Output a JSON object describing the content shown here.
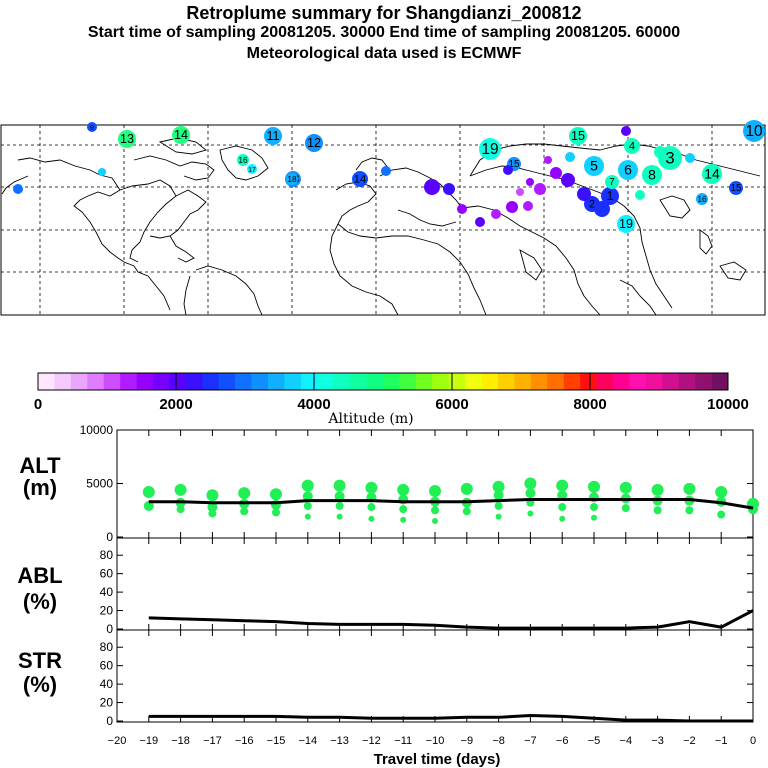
{
  "header": {
    "title": "Retroplume summary for Shangdianzi_200812",
    "sampling": "Start time of sampling 20081205. 30000     End time of sampling 20081205. 60000",
    "met": "Meteorological data used is ECMWF"
  },
  "colorbar": {
    "label": "Altitude (m)",
    "ticks": [
      "0",
      "2000",
      "4000",
      "6000",
      "8000",
      "10000"
    ],
    "colors": [
      "#ffe6ff",
      "#f5c8ff",
      "#eaa6ff",
      "#e07cff",
      "#d04cff",
      "#b01cff",
      "#9600ff",
      "#7800ff",
      "#5a00ff",
      "#3a10ff",
      "#1a30ff",
      "#1050ff",
      "#1070ff",
      "#1090ff",
      "#10b0ff",
      "#10d0ff",
      "#10f0ff",
      "#10ffe0",
      "#10ffc0",
      "#10ffa0",
      "#10ff80",
      "#20ff60",
      "#40ff40",
      "#70ff20",
      "#a0ff10",
      "#c8ff10",
      "#f0ff10",
      "#ffee00",
      "#ffd000",
      "#ffb000",
      "#ff9000",
      "#ff7000",
      "#ff4000",
      "#ff1010",
      "#ff0060",
      "#ff0090",
      "#ff10b0",
      "#f010a0",
      "#d01090",
      "#b01080",
      "#901070",
      "#701060"
    ]
  },
  "map": {
    "markers": [
      {
        "label": "9",
        "color": "#1050ff"
      },
      {
        "label": "13",
        "color": "#20ff80"
      },
      {
        "label": "14",
        "color": "#20ff80"
      },
      {
        "label": "11",
        "color": "#10b0ff"
      },
      {
        "label": "12",
        "color": "#1090ff"
      },
      {
        "label": "16",
        "color": "#10ffc0"
      },
      {
        "label": "17",
        "color": "#10f0ff"
      },
      {
        "label": "18",
        "color": "#1090ff"
      },
      {
        "label": "19",
        "color": "#10ffe0"
      },
      {
        "label": "15",
        "color": "#10ffc0"
      },
      {
        "label": "10",
        "color": "#10b0ff"
      },
      {
        "label": "14",
        "color": "#10ffc0"
      },
      {
        "label": "1",
        "color": "#1a30ff"
      },
      {
        "label": "2",
        "color": "#1a30ff"
      },
      {
        "label": "3",
        "color": "#10ffc0"
      },
      {
        "label": "4",
        "color": "#10ffc0"
      },
      {
        "label": "5",
        "color": "#10d0ff"
      },
      {
        "label": "6",
        "color": "#10d0ff"
      },
      {
        "label": "7",
        "color": "#10ffc0"
      },
      {
        "label": "8",
        "color": "#10ffc0"
      },
      {
        "label": "15",
        "color": "#1090ff"
      },
      {
        "label": "19",
        "color": "#10f0ff"
      },
      {
        "label": "16",
        "color": "#10b0ff"
      },
      {
        "label": "15",
        "color": "#1050ff"
      },
      {
        "label": "14",
        "color": "#1050ff"
      },
      {
        "label": "18",
        "color": "#10b0ff"
      }
    ]
  },
  "chart_data": [
    {
      "type": "scatter",
      "name": "ALT",
      "ylabel": "ALT\n(m)",
      "ylabel_lines": [
        "ALT",
        "(m)"
      ],
      "ylim": [
        0,
        10000
      ],
      "yticks": [
        "10000",
        "5000",
        "0"
      ],
      "xlim": [
        -20,
        0
      ],
      "mean_line": [
        [
          -19,
          3300
        ],
        [
          -18,
          3300
        ],
        [
          -17,
          3200
        ],
        [
          -16,
          3200
        ],
        [
          -15,
          3200
        ],
        [
          -14,
          3400
        ],
        [
          -13,
          3400
        ],
        [
          -12,
          3400
        ],
        [
          -11,
          3300
        ],
        [
          -10,
          3300
        ],
        [
          -9,
          3300
        ],
        [
          -8,
          3400
        ],
        [
          -7,
          3500
        ],
        [
          -6,
          3500
        ],
        [
          -5,
          3500
        ],
        [
          -4,
          3500
        ],
        [
          -3,
          3500
        ],
        [
          -2,
          3500
        ],
        [
          -1,
          3200
        ],
        [
          0,
          2700
        ]
      ],
      "points_per_day": [
        {
          "day": -19,
          "values": [
            4200,
            2900
          ]
        },
        {
          "day": -18,
          "values": [
            4400,
            3200,
            2600
          ]
        },
        {
          "day": -17,
          "values": [
            3900,
            2800,
            2200
          ]
        },
        {
          "day": -16,
          "values": [
            4100,
            3100,
            2400
          ]
        },
        {
          "day": -15,
          "values": [
            4000,
            3000,
            2300
          ]
        },
        {
          "day": -14,
          "values": [
            4800,
            3800,
            2900,
            1900
          ]
        },
        {
          "day": -13,
          "values": [
            4800,
            3800,
            2900,
            1900
          ]
        },
        {
          "day": -12,
          "values": [
            4600,
            3700,
            2800,
            1700
          ]
        },
        {
          "day": -11,
          "values": [
            4400,
            3500,
            2600,
            1600
          ]
        },
        {
          "day": -10,
          "values": [
            4300,
            3300,
            2500,
            1500
          ]
        },
        {
          "day": -9,
          "values": [
            4500,
            3200,
            2400
          ]
        },
        {
          "day": -8,
          "values": [
            4700,
            3900,
            2900,
            1900
          ]
        },
        {
          "day": -7,
          "values": [
            5000,
            4100,
            3200,
            2200
          ]
        },
        {
          "day": -6,
          "values": [
            4800,
            3900,
            2800,
            1700
          ]
        },
        {
          "day": -5,
          "values": [
            4700,
            3700,
            2800,
            1800
          ]
        },
        {
          "day": -4,
          "values": [
            4600,
            3600,
            2700
          ]
        },
        {
          "day": -3,
          "values": [
            4400,
            3400,
            2500
          ]
        },
        {
          "day": -2,
          "values": [
            4500,
            3400,
            2500
          ]
        },
        {
          "day": -1,
          "values": [
            4200,
            3300,
            2100
          ]
        },
        {
          "day": 0,
          "values": [
            3100,
            2600
          ]
        }
      ]
    },
    {
      "type": "line",
      "name": "ABL",
      "ylabel": "ABL\n(%)",
      "ylabel_lines": [
        "ABL",
        "(%)"
      ],
      "ylim": [
        0,
        90
      ],
      "yticks": [
        "80",
        "60",
        "40",
        "20",
        "0"
      ],
      "x": [
        -19,
        -18,
        -17,
        -16,
        -15,
        -14,
        -13,
        -12,
        -11,
        -10,
        -9,
        -8,
        -7,
        -6,
        -5,
        -4,
        -3,
        -2,
        -1,
        0
      ],
      "values": [
        12,
        11,
        10,
        9,
        8,
        6,
        5,
        5,
        5,
        4,
        2,
        1,
        1,
        1,
        1,
        1,
        2,
        8,
        2,
        20
      ]
    },
    {
      "type": "line",
      "name": "STR",
      "ylabel": "STR\n(%)",
      "ylabel_lines": [
        "STR",
        "(%)"
      ],
      "ylim": [
        0,
        90
      ],
      "yticks": [
        "80",
        "60",
        "40",
        "20",
        "0"
      ],
      "x": [
        -19,
        -18,
        -17,
        -16,
        -15,
        -14,
        -13,
        -12,
        -11,
        -10,
        -9,
        -8,
        -7,
        -6,
        -5,
        -4,
        -3,
        -2,
        -1,
        0
      ],
      "values": [
        5,
        5,
        5,
        5,
        5,
        4,
        4,
        3,
        3,
        3,
        4,
        4,
        6,
        5,
        3,
        1,
        1,
        0,
        0,
        0
      ]
    }
  ],
  "xaxis": {
    "title": "Travel time (days)",
    "ticks": [
      "−20",
      "−19",
      "−18",
      "−17",
      "−16",
      "−15",
      "−14",
      "−13",
      "−12",
      "−11",
      "−10",
      "−9",
      "−8",
      "−7",
      "−6",
      "−5",
      "−4",
      "−3",
      "−2",
      "−1",
      "0"
    ]
  }
}
